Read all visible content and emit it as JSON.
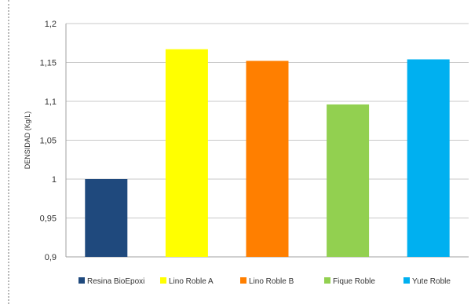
{
  "chart_data": {
    "type": "bar",
    "title": "",
    "xlabel": "",
    "ylabel": "DENSIDAD (Kg/L)",
    "ylim": [
      0.9,
      1.2
    ],
    "yticks": [
      "0,9",
      "0,95",
      "1",
      "1,05",
      "1,1",
      "1,15",
      "1,2"
    ],
    "yticks_values": [
      0.9,
      0.95,
      1.0,
      1.05,
      1.1,
      1.15,
      1.2
    ],
    "grid": true,
    "legend_position": "bottom",
    "categories": [
      "Resina BioEpoxi",
      "Lino Roble A",
      "Lino Roble B",
      "Fique Roble",
      "Yute Roble"
    ],
    "series": [
      {
        "values": [
          1.0,
          1.167,
          1.152,
          1.096,
          1.154
        ],
        "colors": [
          "#1F497D",
          "#FFFF00",
          "#FF7F00",
          "#92D050",
          "#00B0F0"
        ]
      }
    ]
  }
}
